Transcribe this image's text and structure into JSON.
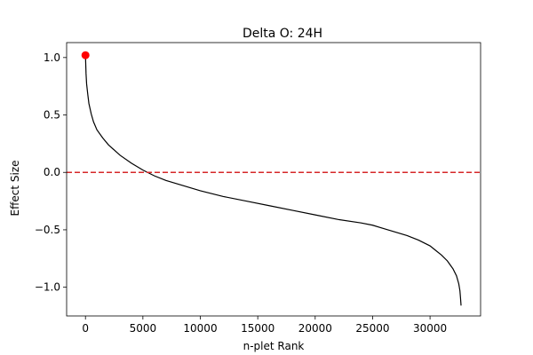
{
  "chart_data": {
    "type": "line",
    "title": "Delta O: 24H",
    "xlabel": "n-plet Rank",
    "ylabel": "Effect Size",
    "xlim": [
      -1640,
      34400
    ],
    "ylim": [
      -1.25,
      1.13
    ],
    "xticks": [
      0,
      5000,
      10000,
      15000,
      20000,
      25000,
      30000
    ],
    "xtick_labels": [
      "0",
      "5000",
      "10000",
      "15000",
      "20000",
      "25000",
      "30000"
    ],
    "yticks": [
      1.0,
      0.5,
      0.0,
      -0.5,
      -1.0
    ],
    "ytick_labels": [
      "1.0",
      "0.5",
      "0.0",
      "−0.5",
      "−1.0"
    ],
    "grid": false,
    "series": [
      {
        "type": "line",
        "color": "#000000",
        "x": [
          0,
          50,
          100,
          200,
          300,
          500,
          700,
          1000,
          1500,
          2000,
          3000,
          4000,
          5000,
          6000,
          7000,
          8000,
          10000,
          12000,
          14000,
          16000,
          18000,
          20000,
          22000,
          24000,
          25000,
          26000,
          27000,
          28000,
          29000,
          30000,
          30500,
          31000,
          31500,
          32000,
          32300,
          32500,
          32600,
          32650,
          32700
        ],
        "y": [
          1.02,
          0.86,
          0.77,
          0.68,
          0.6,
          0.51,
          0.44,
          0.37,
          0.3,
          0.24,
          0.15,
          0.08,
          0.02,
          -0.03,
          -0.07,
          -0.1,
          -0.16,
          -0.21,
          -0.25,
          -0.29,
          -0.33,
          -0.37,
          -0.41,
          -0.44,
          -0.46,
          -0.49,
          -0.52,
          -0.55,
          -0.59,
          -0.64,
          -0.68,
          -0.72,
          -0.77,
          -0.84,
          -0.9,
          -0.97,
          -1.03,
          -1.09,
          -1.16
        ]
      },
      {
        "type": "point",
        "color": "#ff0000",
        "x": [
          0
        ],
        "y": [
          1.02
        ]
      },
      {
        "type": "hline",
        "color": "#d62728",
        "linestyle": "dashed",
        "y": 0.0
      }
    ]
  }
}
